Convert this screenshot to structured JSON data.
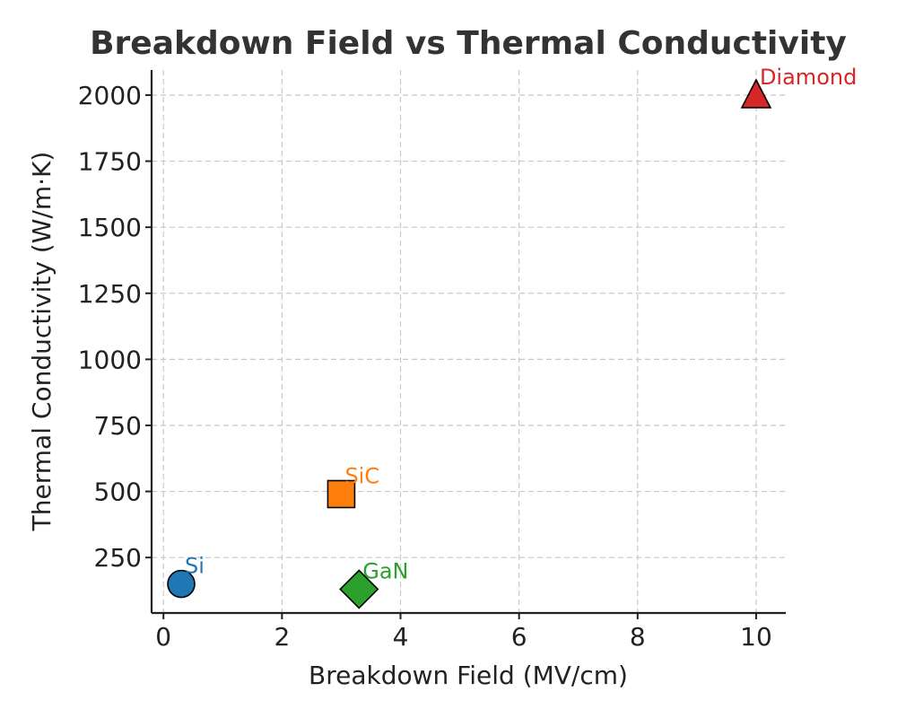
{
  "chart_data": {
    "type": "scatter",
    "title": "Breakdown Field vs Thermal Conductivity",
    "xlabel": "Breakdown Field (MV/cm)",
    "ylabel": "Thermal Conductivity (W/m·K)",
    "xlim": [
      -0.2,
      10.5
    ],
    "ylim": [
      40,
      2095
    ],
    "grid": true,
    "xticks": [
      0,
      2,
      4,
      6,
      8,
      10
    ],
    "yticks": [
      250,
      500,
      750,
      1000,
      1250,
      1500,
      1750,
      2000
    ],
    "points": [
      {
        "name": "Si",
        "x": 0.3,
        "y": 150,
        "marker": "circle",
        "color": "#1f77b4"
      },
      {
        "name": "SiC",
        "x": 3.0,
        "y": 490,
        "marker": "square",
        "color": "#ff7f0e"
      },
      {
        "name": "GaN",
        "x": 3.3,
        "y": 130,
        "marker": "diamond",
        "color": "#2ca02c"
      },
      {
        "name": "Diamond",
        "x": 10.0,
        "y": 2000,
        "marker": "triangle",
        "color": "#d62728"
      }
    ]
  }
}
